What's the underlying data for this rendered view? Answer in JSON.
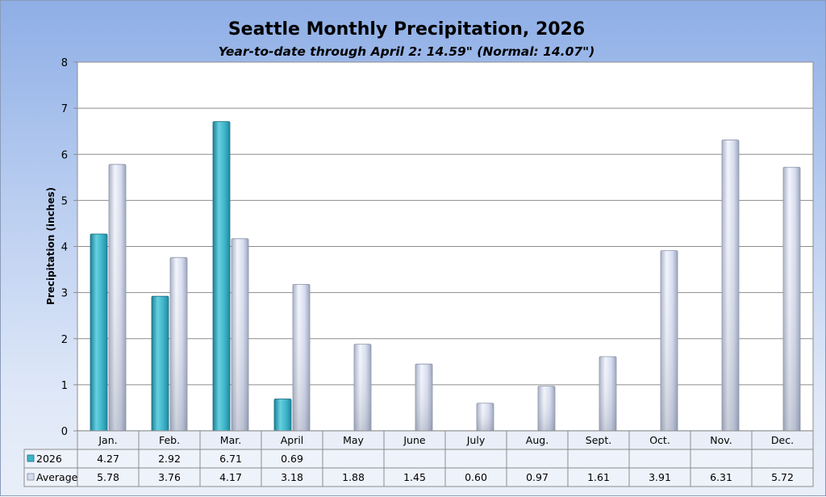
{
  "colors": {
    "series_2026": "#3eb4c8",
    "series_average": "#d6dcef"
  },
  "chart_data": {
    "type": "bar",
    "title": "Seattle Monthly Precipitation, 2026",
    "subtitle": "Year-to-date through April 2: 14.59\" (Normal: 14.07\")",
    "ylabel": "Precipitation (inches)",
    "xlabel": "",
    "ylim": [
      0,
      8
    ],
    "yticks": [
      "0",
      "1",
      "2",
      "3",
      "4",
      "5",
      "6",
      "7",
      "8"
    ],
    "grid": true,
    "legend": "data-table",
    "categories": [
      "Jan.",
      "Feb.",
      "Mar.",
      "April",
      "May",
      "June",
      "July",
      "Aug.",
      "Sept.",
      "Oct.",
      "Nov.",
      "Dec."
    ],
    "series": [
      {
        "name": "2026",
        "values": [
          4.27,
          2.92,
          6.71,
          0.69,
          null,
          null,
          null,
          null,
          null,
          null,
          null,
          null
        ],
        "labels": [
          "4.27",
          "2.92",
          "6.71",
          "0.69",
          "",
          "",
          "",
          "",
          "",
          "",
          "",
          ""
        ]
      },
      {
        "name": "Average",
        "values": [
          5.78,
          3.76,
          4.17,
          3.18,
          1.88,
          1.45,
          0.6,
          0.97,
          1.61,
          3.91,
          6.31,
          5.72
        ],
        "labels": [
          "5.78",
          "3.76",
          "4.17",
          "3.18",
          "1.88",
          "1.45",
          "0.60",
          "0.97",
          "1.61",
          "3.91",
          "6.31",
          "5.72"
        ]
      }
    ]
  }
}
